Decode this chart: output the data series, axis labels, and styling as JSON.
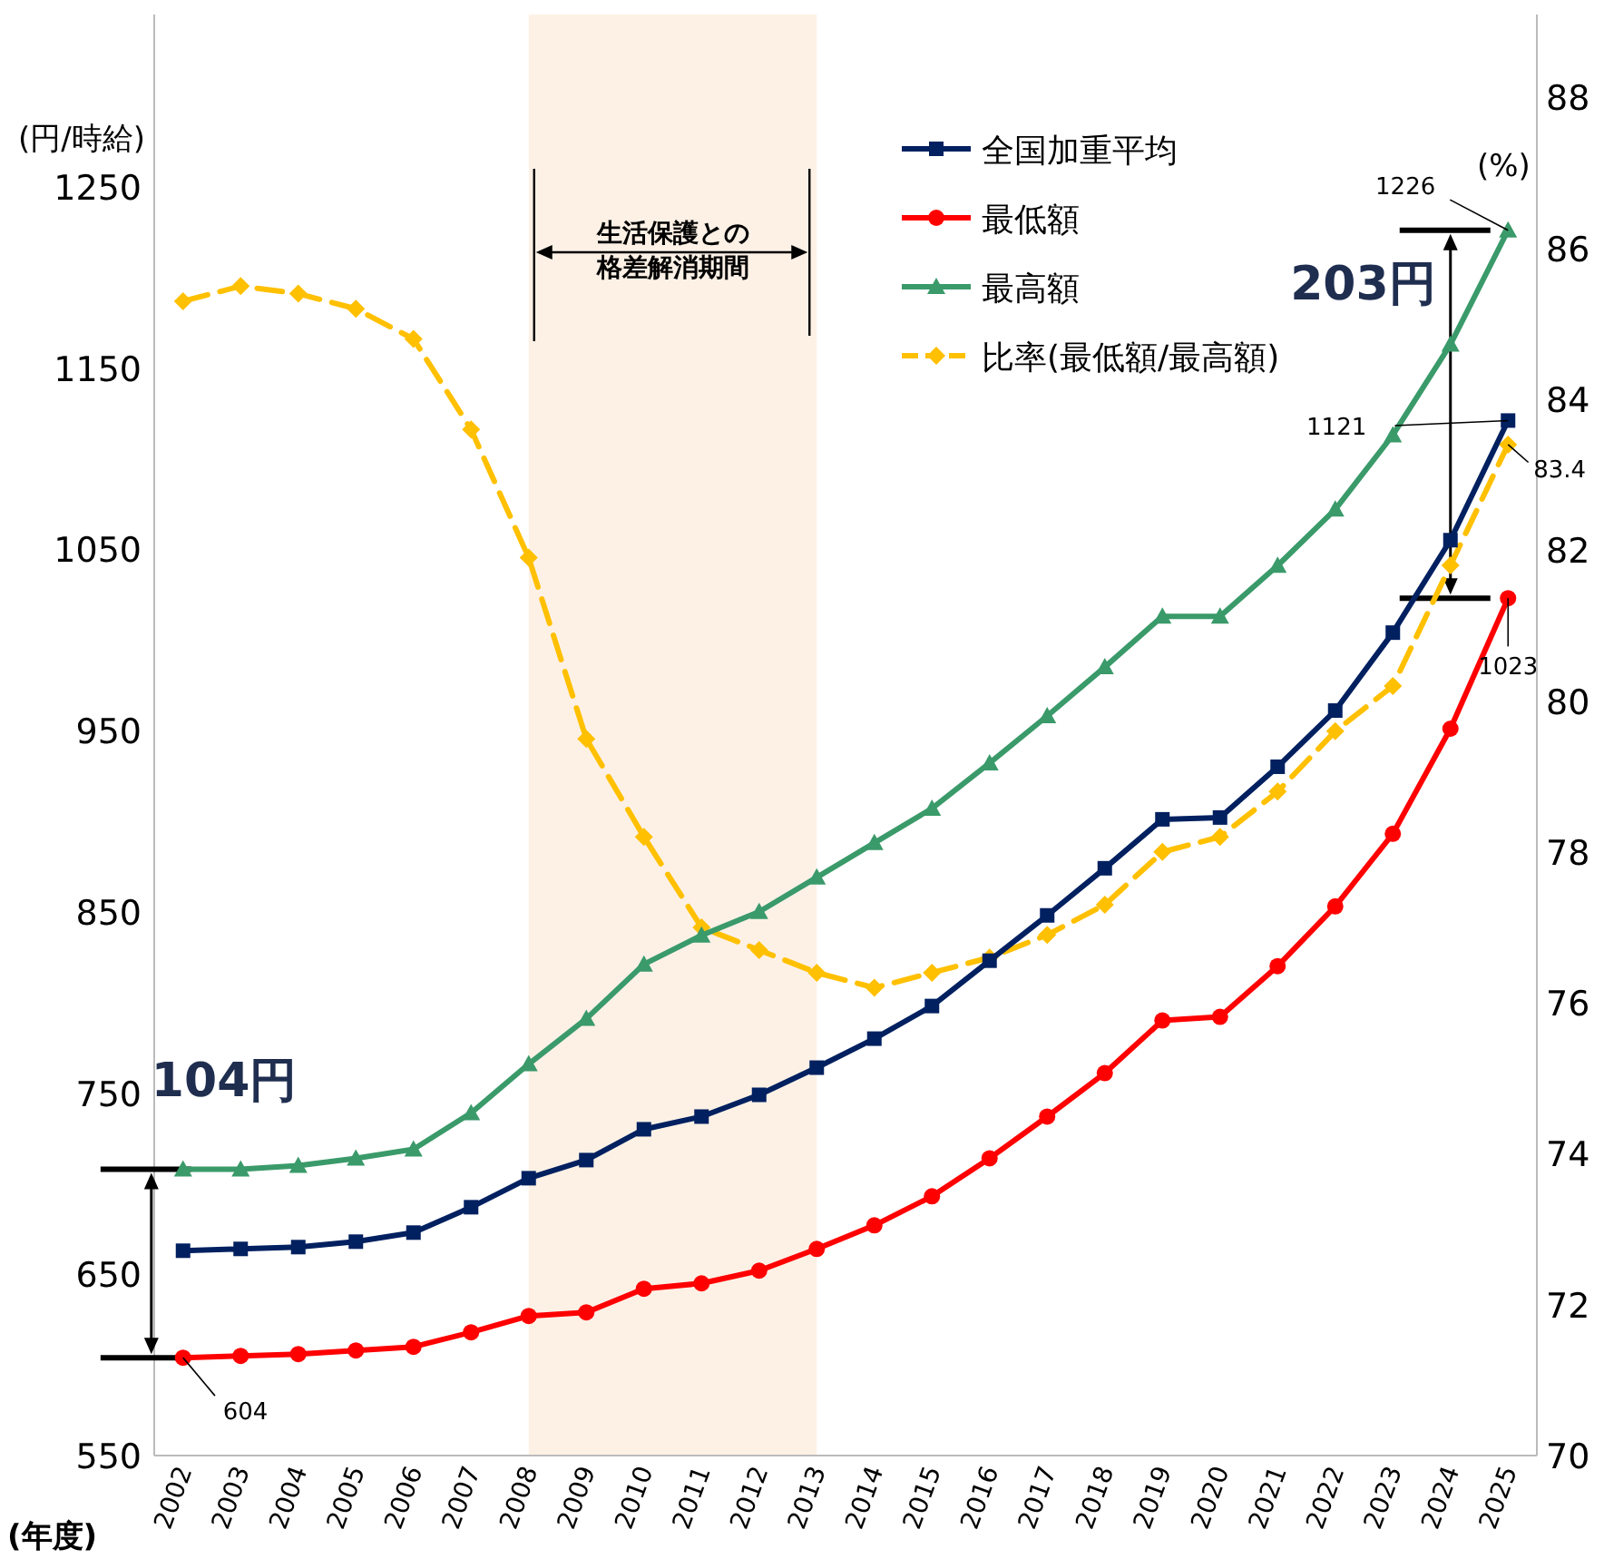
{
  "chart_data": {
    "type": "line",
    "categories": [
      "2002",
      "2003",
      "2004",
      "2005",
      "2006",
      "2007",
      "2008",
      "2009",
      "2010",
      "2011",
      "2012",
      "2013",
      "2014",
      "2015",
      "2016",
      "2017",
      "2018",
      "2019",
      "2020",
      "2021",
      "2022",
      "2023",
      "2024",
      "2025"
    ],
    "series": [
      {
        "name": "全国加重平均",
        "color": "#002060",
        "marker": "square",
        "values": [
          663,
          664,
          665,
          668,
          673,
          687,
          703,
          713,
          730,
          737,
          749,
          764,
          780,
          798,
          823,
          848,
          874,
          901,
          902,
          930,
          961,
          1004,
          1055,
          1121
        ],
        "value_labels": [
          null,
          null,
          null,
          null,
          null,
          null,
          null,
          null,
          null,
          null,
          null,
          null,
          null,
          null,
          null,
          null,
          null,
          null,
          null,
          null,
          null,
          null,
          null,
          "1121"
        ]
      },
      {
        "name": "最低額",
        "color": "#ff0000",
        "marker": "circle",
        "values": [
          604,
          605,
          606,
          608,
          610,
          618,
          627,
          629,
          642,
          645,
          652,
          664,
          677,
          693,
          714,
          737,
          761,
          790,
          792,
          820,
          853,
          893,
          951,
          1023
        ],
        "value_labels": [
          "604",
          null,
          null,
          null,
          null,
          null,
          null,
          null,
          null,
          null,
          null,
          null,
          null,
          null,
          null,
          null,
          null,
          null,
          null,
          null,
          null,
          null,
          null,
          "1023"
        ]
      },
      {
        "name": "最高額",
        "color": "#3a9a6a",
        "marker": "triangle",
        "values": [
          708,
          708,
          710,
          714,
          719,
          739,
          766,
          791,
          821,
          837,
          850,
          869,
          888,
          907,
          932,
          958,
          985,
          1013,
          1013,
          1041,
          1072,
          1113,
          1163,
          1226
        ],
        "value_labels": [
          null,
          null,
          null,
          null,
          null,
          null,
          null,
          null,
          null,
          null,
          null,
          null,
          null,
          null,
          null,
          null,
          null,
          null,
          null,
          null,
          null,
          null,
          null,
          "1226"
        ]
      },
      {
        "name": "比率(最低額/最高額)",
        "color": "#ffc000",
        "marker": "diamond",
        "line_style": "dashed",
        "axis": "y2",
        "values": [
          85.3,
          85.5,
          85.4,
          85.2,
          84.8,
          83.6,
          81.9,
          79.5,
          78.2,
          77.0,
          76.7,
          76.4,
          76.2,
          76.4,
          76.6,
          76.9,
          77.3,
          78.0,
          78.2,
          78.8,
          79.6,
          80.2,
          81.8,
          83.4
        ],
        "value_labels": [
          null,
          null,
          null,
          null,
          null,
          null,
          null,
          null,
          null,
          null,
          null,
          null,
          null,
          null,
          null,
          null,
          null,
          null,
          null,
          null,
          null,
          null,
          null,
          "83.4"
        ]
      }
    ],
    "ylim": [
      550,
      1345
    ],
    "yticks": [
      550,
      650,
      750,
      850,
      950,
      1050,
      1150,
      1250
    ],
    "y2lim": [
      70,
      89.1
    ],
    "y2ticks": [
      70,
      72,
      74,
      76,
      78,
      80,
      82,
      84,
      86,
      88
    ],
    "ylabel": "(円/時給)",
    "y2label": "(%)",
    "xlabel": "(年度)",
    "bands": [
      {
        "axis": "x",
        "from": "2008",
        "to": "2013",
        "label": "生活保護との格差解消期間",
        "color": "#fdf1e6"
      }
    ],
    "annotations": [
      {
        "text": "104円",
        "x": "2002",
        "y": 708
      },
      {
        "text": "203円",
        "x": "2025",
        "y": 1226
      }
    ],
    "legend": "top",
    "grid": false
  }
}
